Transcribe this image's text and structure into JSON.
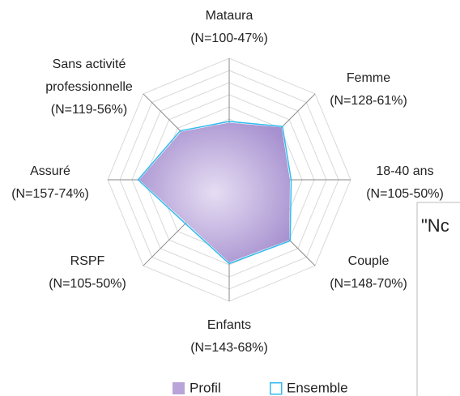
{
  "chart_data": {
    "type": "radar",
    "categories": [
      [
        "Mataura",
        "(N=100-47%)"
      ],
      [
        "Femme",
        "(N=128-61%)"
      ],
      [
        "18-40 ans",
        "(N=105-50%)"
      ],
      [
        "Couple",
        "(N=148-70%)"
      ],
      [
        "Enfants",
        "(N=143-68%)"
      ],
      [
        "RSPF",
        "(N=105-50%)"
      ],
      [
        "Assuré",
        "(N=157-74%)"
      ],
      [
        "Sans activité",
        "professionnelle",
        "(N=119-56%)"
      ]
    ],
    "series": [
      {
        "name": "Profil",
        "color": "#b8a4d8",
        "values": [
          47,
          61,
          50,
          70,
          68,
          50,
          74,
          56
        ]
      },
      {
        "name": "Ensemble",
        "color": "#33bbee",
        "values": [
          48,
          62,
          51,
          71,
          69,
          51,
          75,
          57
        ]
      }
    ],
    "ylim": [
      0,
      100
    ],
    "yticks": [
      10,
      20,
      30,
      40,
      50,
      60,
      70,
      80,
      90,
      100
    ],
    "grid": true,
    "legend": "bottom"
  },
  "clipped_box": {
    "text": "\"Nc"
  }
}
